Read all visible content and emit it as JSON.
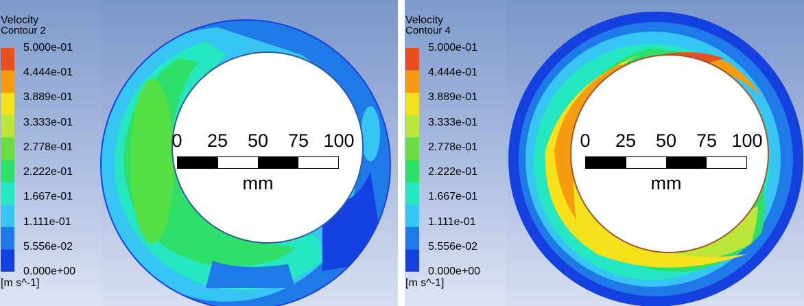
{
  "chart_data": [
    {
      "type": "heatmap",
      "title": "Velocity",
      "subtitle": "Contour 2",
      "unit": "[m s^-1]",
      "legend_ticks": [
        "5.000e-01",
        "4.444e-01",
        "3.889e-01",
        "3.333e-01",
        "2.778e-01",
        "2.222e-01",
        "1.667e-01",
        "1.111e-01",
        "5.556e-02",
        "0.000e+00"
      ],
      "color_levels": [
        "#e8501d",
        "#f79b10",
        "#f6e21a",
        "#bde63a",
        "#6bdc44",
        "#2ee06a",
        "#25e7c1",
        "#37c6f3",
        "#1f7ae8",
        "#1540e0"
      ],
      "range": [
        0,
        0.5
      ],
      "scale_bar": {
        "ticks": [
          "0",
          "25",
          "50",
          "75",
          "100"
        ],
        "unit": "mm"
      }
    },
    {
      "type": "heatmap",
      "title": "Velocity",
      "subtitle": "Contour 4",
      "unit": "[m s^-1]",
      "legend_ticks": [
        "5.000e-01",
        "4.444e-01",
        "3.889e-01",
        "3.333e-01",
        "2.778e-01",
        "2.222e-01",
        "1.667e-01",
        "1.111e-01",
        "5.556e-02",
        "0.000e+00"
      ],
      "color_levels": [
        "#e8501d",
        "#f79b10",
        "#f6e21a",
        "#bde63a",
        "#6bdc44",
        "#2ee06a",
        "#25e7c1",
        "#37c6f3",
        "#1f7ae8",
        "#1540e0"
      ],
      "range": [
        0,
        0.5
      ],
      "scale_bar": {
        "ticks": [
          "0",
          "25",
          "50",
          "75",
          "100"
        ],
        "unit": "mm"
      }
    }
  ]
}
